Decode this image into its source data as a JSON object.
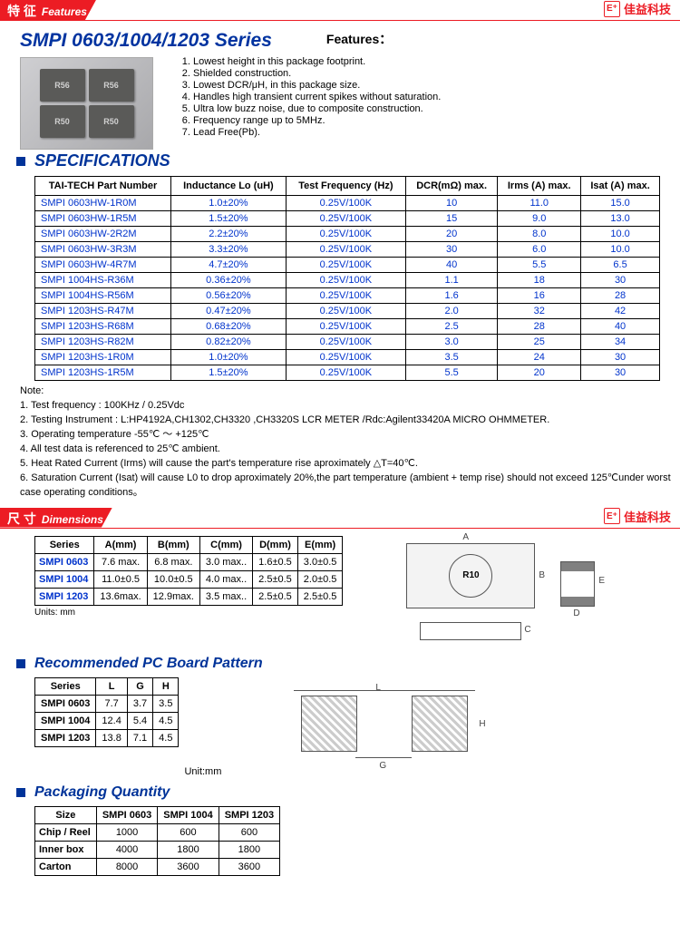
{
  "brand_text": "佳益科技",
  "brand_box": "E⁺",
  "banners": {
    "features": {
      "cn": "特 征",
      "en": "Features"
    },
    "dimensions": {
      "cn": "尺 寸",
      "en": "Dimensions"
    }
  },
  "series_title": "SMPI 0603/1004/1203 Series",
  "features_label": "Features：",
  "chips": [
    "R56",
    "R56",
    "R50",
    "R50"
  ],
  "features": [
    "Lowest height in this package footprint.",
    "Shielded construction.",
    "Lowest DCR/μH, in this package size.",
    "Handles high transient current spikes without saturation.",
    "Ultra low buzz noise, due to composite construction.",
    "Frequency range up to 5MHz.",
    "Lead Free(Pb)."
  ],
  "sections": {
    "specifications": "SPECIFICATIONS",
    "dimensions_units": "Units: mm",
    "pcb": "Recommended PC Board Pattern",
    "packaging": "Packaging Quantity"
  },
  "spec_table": {
    "headers": [
      "TAI-TECH Part Number",
      "Inductance Lo (uH)",
      "Test Frequency (Hz)",
      "DCR(mΩ) max.",
      "Irms (A) max.",
      "Isat (A) max."
    ],
    "rows": [
      [
        "SMPI 0603HW-1R0M",
        "1.0±20%",
        "0.25V/100K",
        "10",
        "11.0",
        "15.0"
      ],
      [
        "SMPI 0603HW-1R5M",
        "1.5±20%",
        "0.25V/100K",
        "15",
        "9.0",
        "13.0"
      ],
      [
        "SMPI 0603HW-2R2M",
        "2.2±20%",
        "0.25V/100K",
        "20",
        "8.0",
        "10.0"
      ],
      [
        "SMPI 0603HW-3R3M",
        "3.3±20%",
        "0.25V/100K",
        "30",
        "6.0",
        "10.0"
      ],
      [
        "SMPI 0603HW-4R7M",
        "4.7±20%",
        "0.25V/100K",
        "40",
        "5.5",
        "6.5"
      ],
      [
        "SMPI 1004HS-R36M",
        "0.36±20%",
        "0.25V/100K",
        "1.1",
        "18",
        "30"
      ],
      [
        "SMPI 1004HS-R56M",
        "0.56±20%",
        "0.25V/100K",
        "1.6",
        "16",
        "28"
      ],
      [
        "SMPI 1203HS-R47M",
        "0.47±20%",
        "0.25V/100K",
        "2.0",
        "32",
        "42"
      ],
      [
        "SMPI 1203HS-R68M",
        "0.68±20%",
        "0.25V/100K",
        "2.5",
        "28",
        "40"
      ],
      [
        "SMPI 1203HS-R82M",
        "0.82±20%",
        "0.25V/100K",
        "3.0",
        "25",
        "34"
      ],
      [
        "SMPI 1203HS-1R0M",
        "1.0±20%",
        "0.25V/100K",
        "3.5",
        "24",
        "30"
      ],
      [
        "SMPI 1203HS-1R5M",
        "1.5±20%",
        "0.25V/100K",
        "5.5",
        "20",
        "30"
      ]
    ]
  },
  "notes_title": "Note:",
  "notes": [
    "1. Test frequency : 100KHz / 0.25Vdc",
    "2. Testing Instrument : L:HP4192A,CH1302,CH3320 ,CH3320S LCR METER /Rdc:Agilent33420A MICRO OHMMETER.",
    "3. Operating temperature -55℃ ～ +125℃",
    "4. All test data is referenced to 25℃  ambient.",
    "5. Heat Rated Current (Irms) will cause the part's temperature rise aproximately   △T=40℃.",
    "6. Saturation Current (Isat) will cause L0    to drop aproximately 20%,the part temperature (ambient + temp rise) should not exceed 125℃under worst case operating conditions。"
  ],
  "dim_table": {
    "headers": [
      "Series",
      "A(mm)",
      "B(mm)",
      "C(mm)",
      "D(mm)",
      "E(mm)"
    ],
    "rows": [
      [
        "SMPI 0603",
        "7.6 max.",
        "6.8 max.",
        "3.0 max..",
        "1.6±0.5",
        "3.0±0.5"
      ],
      [
        "SMPI 1004",
        "11.0±0.5",
        "10.0±0.5",
        "4.0 max..",
        "2.5±0.5",
        "2.0±0.5"
      ],
      [
        "SMPI 1203",
        "13.6max.",
        "12.9max.",
        "3.5 max..",
        "2.5±0.5",
        "2.5±0.5"
      ]
    ]
  },
  "diagram_labels": {
    "A": "A",
    "B": "B",
    "C": "C",
    "D": "D",
    "E": "E",
    "R10": "R10",
    "L": "L",
    "G": "G",
    "H": "H"
  },
  "pcb_table": {
    "headers": [
      "Series",
      "L",
      "G",
      "H"
    ],
    "rows": [
      [
        "SMPI 0603",
        "7.7",
        "3.7",
        "3.5"
      ],
      [
        "SMPI 1004",
        "12.4",
        "5.4",
        "4.5"
      ],
      [
        "SMPI 1203",
        "13.8",
        "7.1",
        "4.5"
      ]
    ],
    "unit": "Unit:mm"
  },
  "pkg_table": {
    "headers": [
      "Size",
      "SMPI 0603",
      "SMPI 1004",
      "SMPI 1203"
    ],
    "rows": [
      [
        "Chip / Reel",
        "1000",
        "600",
        "600"
      ],
      [
        "Inner box",
        "4000",
        "1800",
        "1800"
      ],
      [
        "Carton",
        "8000",
        "3600",
        "3600"
      ]
    ]
  }
}
